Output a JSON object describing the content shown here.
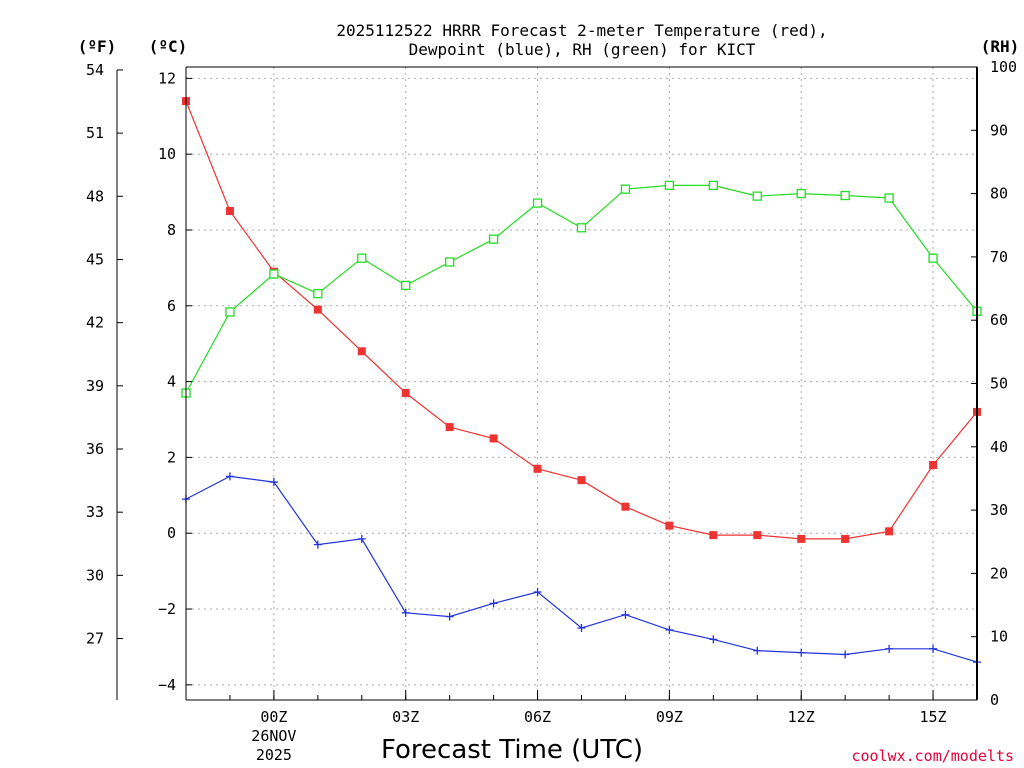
{
  "chart_data": {
    "type": "line",
    "title_lines": [
      "2025112522 HRRR Forecast 2-meter Temperature (red),",
      "Dewpoint (blue), RH (green) for KICT"
    ],
    "xlabel": "Forecast Time (UTC)",
    "credit": "coolwx.com/modelts",
    "units": {
      "fahrenheit": "(ºF)",
      "celsius": "(ºC)",
      "rh": "(RH)"
    },
    "x_hours": [
      -2,
      -1,
      0,
      1,
      2,
      3,
      4,
      5,
      6,
      7,
      8,
      9,
      10,
      11,
      12,
      13,
      14,
      15,
      16
    ],
    "x_ticks": [
      {
        "hour": 0,
        "label": "00Z",
        "sub1": "26NOV",
        "sub2": "2025"
      },
      {
        "hour": 3,
        "label": "03Z",
        "sub1": "",
        "sub2": ""
      },
      {
        "hour": 6,
        "label": "06Z",
        "sub1": "",
        "sub2": ""
      },
      {
        "hour": 9,
        "label": "09Z",
        "sub1": "",
        "sub2": ""
      },
      {
        "hour": 12,
        "label": "12Z",
        "sub1": "",
        "sub2": ""
      },
      {
        "hour": 15,
        "label": "15Z",
        "sub1": "",
        "sub2": ""
      }
    ],
    "xlim": [
      -2,
      16
    ],
    "celsius_axis": {
      "ylim": [
        -4.4,
        12.3
      ],
      "ticks": [
        12,
        10,
        8,
        6,
        4,
        2,
        0,
        -2,
        -4
      ],
      "tick_labels": [
        "12",
        "10",
        "8",
        "6",
        "4",
        "2",
        "0",
        "−2",
        "−4"
      ]
    },
    "fahrenheit_axis": {
      "ticks": [
        54,
        51,
        48,
        45,
        42,
        39,
        36,
        33,
        30,
        27
      ]
    },
    "rh_axis": {
      "ylim": [
        0,
        100
      ],
      "ticks": [
        100,
        90,
        80,
        70,
        60,
        50,
        40,
        30,
        20,
        10,
        0
      ]
    },
    "series": [
      {
        "name": "Temperature",
        "axis": "celsius",
        "color": "#ee3333",
        "marker": "filled-square",
        "values": [
          11.4,
          8.5,
          6.9,
          5.9,
          4.8,
          3.7,
          2.8,
          2.5,
          1.7,
          1.4,
          0.7,
          0.2,
          -0.05,
          -0.05,
          -0.15,
          -0.15,
          0.05,
          1.8,
          3.2
        ]
      },
      {
        "name": "Dewpoint",
        "axis": "celsius",
        "color": "#2233dd",
        "marker": "plus",
        "values": [
          0.9,
          1.5,
          1.35,
          -0.3,
          -0.15,
          -2.1,
          -2.2,
          -1.85,
          -1.55,
          -2.5,
          -2.15,
          -2.55,
          -2.8,
          -3.1,
          -3.15,
          -3.2,
          -3.05,
          -3.05,
          -3.4
        ]
      },
      {
        "name": "RH",
        "axis": "rh",
        "color": "#22dd22",
        "marker": "open-square",
        "values": [
          48.5,
          61.3,
          67.3,
          64.2,
          69.8,
          65.5,
          69.2,
          72.8,
          78.5,
          74.6,
          80.7,
          81.3,
          81.3,
          79.6,
          80.0,
          79.7,
          79.3,
          69.8,
          61.4
        ]
      }
    ]
  }
}
